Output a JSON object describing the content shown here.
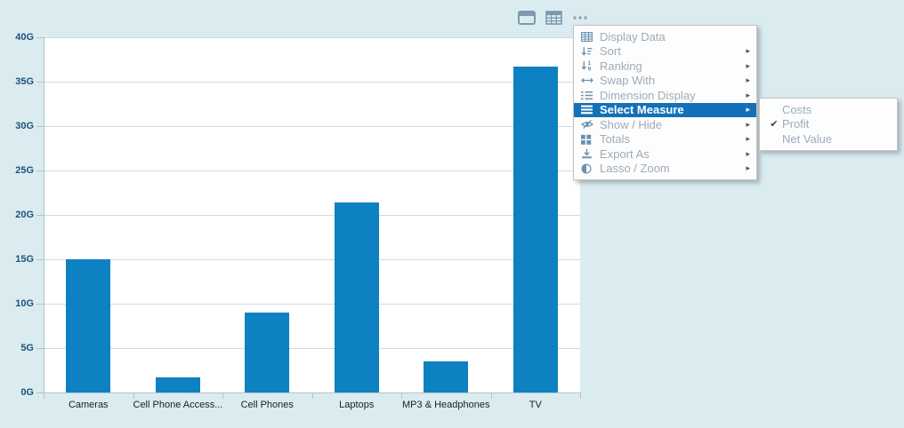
{
  "toolbar": {
    "icons": [
      "chart-view-icon",
      "table-view-icon",
      "more-options-icon"
    ]
  },
  "chart_data": {
    "type": "bar",
    "title": "",
    "xlabel": "",
    "ylabel": "",
    "categories": [
      "Cameras",
      "Cell Phone Access...",
      "Cell Phones",
      "Laptops",
      "MP3 & Headphones",
      "TV"
    ],
    "values": [
      15,
      1.7,
      9,
      21.4,
      3.5,
      36.7
    ],
    "unit": "G",
    "y_ticks": [
      "0G",
      "5G",
      "10G",
      "15G",
      "20G",
      "25G",
      "30G",
      "35G",
      "40G"
    ],
    "ylim": [
      0,
      40
    ],
    "grid": true,
    "legend_position": "none",
    "bar_color": "#0d81c1"
  },
  "context_menu": {
    "items": [
      {
        "label": "Display Data",
        "icon": "table-icon",
        "has_submenu": false,
        "selected": false
      },
      {
        "label": "Sort",
        "icon": "sort-icon",
        "has_submenu": true,
        "selected": false
      },
      {
        "label": "Ranking",
        "icon": "ranking-icon",
        "has_submenu": true,
        "selected": false
      },
      {
        "label": "Swap With",
        "icon": "swap-icon",
        "has_submenu": true,
        "selected": false
      },
      {
        "label": "Dimension Display",
        "icon": "dimension-display-icon",
        "has_submenu": true,
        "selected": false
      },
      {
        "label": "Select Measure",
        "icon": "measure-icon",
        "has_submenu": true,
        "selected": true
      },
      {
        "label": "Show / Hide",
        "icon": "show-hide-icon",
        "has_submenu": true,
        "selected": false
      },
      {
        "label": "Totals",
        "icon": "totals-icon",
        "has_submenu": true,
        "selected": false
      },
      {
        "label": "Export As",
        "icon": "export-icon",
        "has_submenu": true,
        "selected": false
      },
      {
        "label": "Lasso / Zoom",
        "icon": "lasso-zoom-icon",
        "has_submenu": true,
        "selected": false
      }
    ],
    "submenu": {
      "items": [
        {
          "label": "Costs",
          "checked": false
        },
        {
          "label": "Profit",
          "checked": true
        },
        {
          "label": "Net Value",
          "checked": false
        }
      ],
      "checkmark_glyph": "✔"
    },
    "arrow_glyph": "▸"
  },
  "colors": {
    "background": "#dbecf1",
    "bar": "#0d81c1",
    "menu_highlight": "#1371b8",
    "axis_label": "#1d5278",
    "menu_text": "#9dabb8"
  }
}
